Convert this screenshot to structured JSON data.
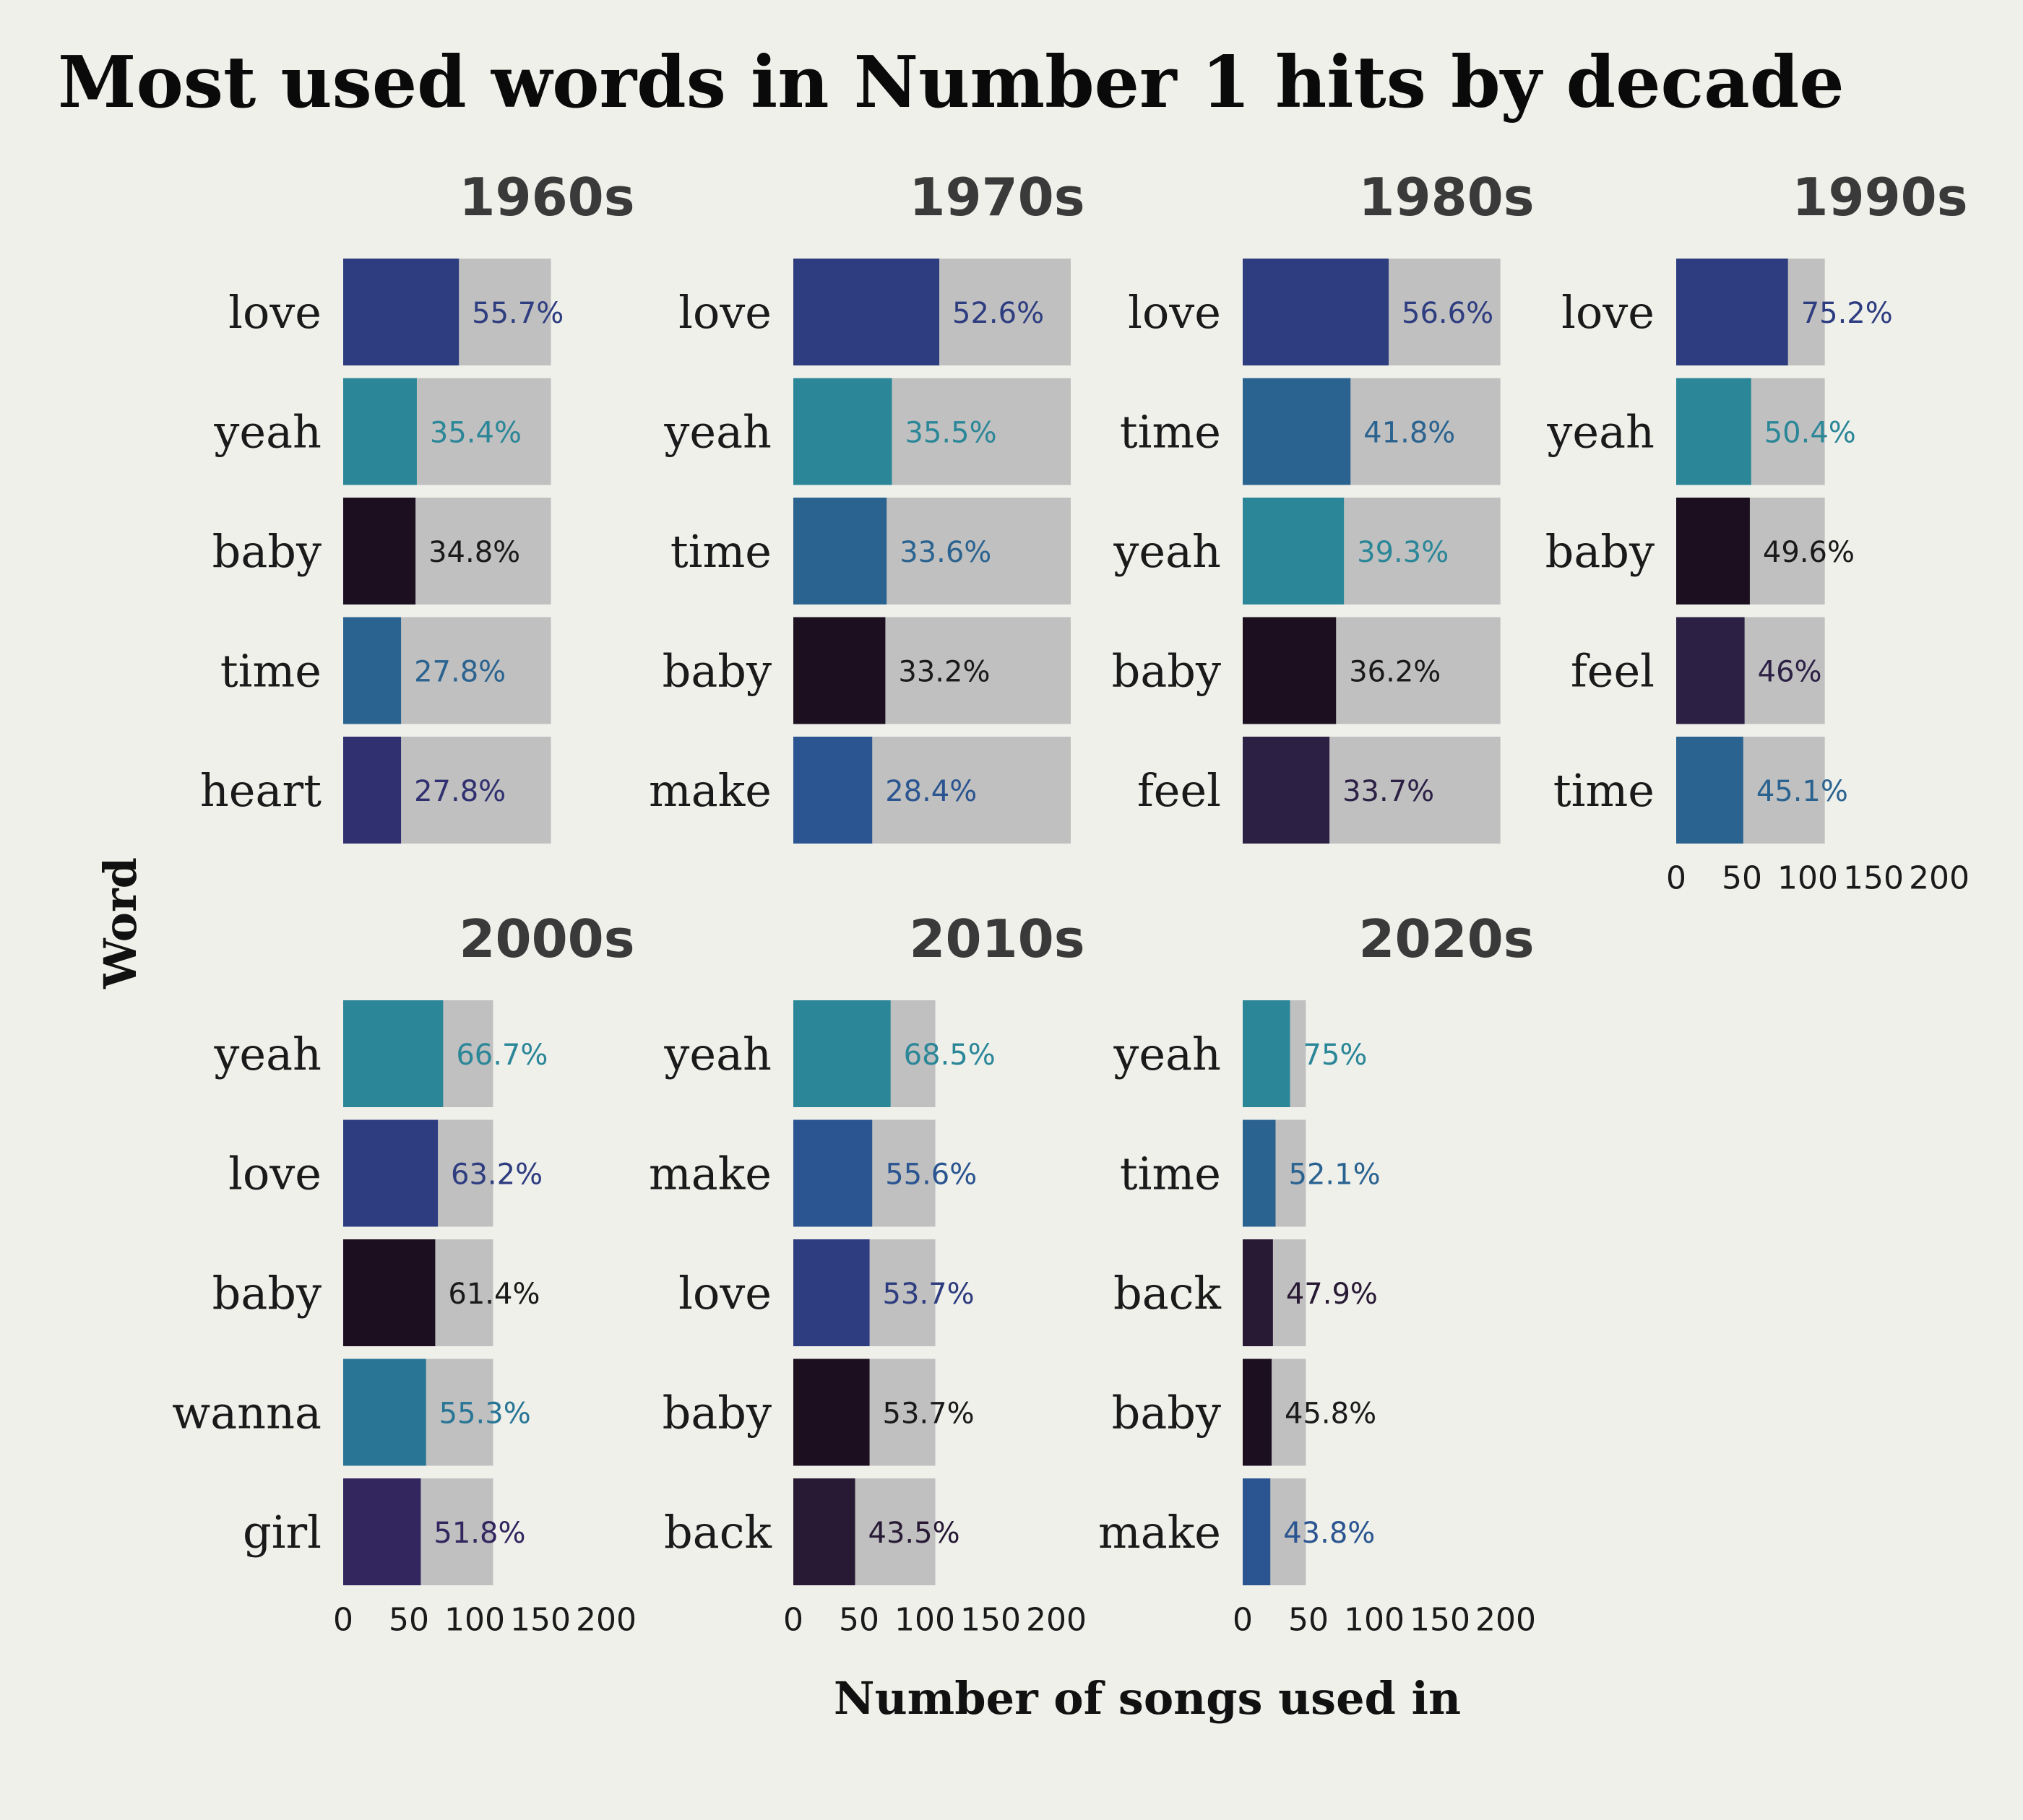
{
  "chart_data": {
    "type": "bar",
    "title": "Most used words in Number 1 hits by decade",
    "xlabel": "Number of songs used in",
    "ylabel": "Word",
    "xlim": [
      0,
      200
    ],
    "xticks": [
      "0",
      "50",
      "100",
      "150",
      "200"
    ],
    "colors": {
      "love": "#2e3d80",
      "yeah": "#2b8798",
      "baby": "#1c1020",
      "time": "#2b6390",
      "heart": "#303070",
      "make": "#2b5590",
      "feel": "#2c2045",
      "wanna": "#287595",
      "girl": "#33255e",
      "back": "#281a35",
      "total": "#c0c0c0"
    },
    "panels": [
      {
        "decade": "1960s",
        "total_songs": 158,
        "words": [
          "love",
          "yeah",
          "baby",
          "time",
          "heart"
        ],
        "values": [
          88,
          56,
          55,
          44,
          44
        ],
        "labels": [
          "55.7%",
          "35.4%",
          "34.8%",
          "27.8%",
          "27.8%"
        ]
      },
      {
        "decade": "1970s",
        "total_songs": 211,
        "words": [
          "love",
          "yeah",
          "time",
          "baby",
          "make"
        ],
        "values": [
          111,
          75,
          71,
          70,
          60
        ],
        "labels": [
          "52.6%",
          "35.5%",
          "33.6%",
          "33.2%",
          "28.4%"
        ]
      },
      {
        "decade": "1980s",
        "total_songs": 196,
        "words": [
          "love",
          "time",
          "yeah",
          "baby",
          "feel"
        ],
        "values": [
          111,
          82,
          77,
          71,
          66
        ],
        "labels": [
          "56.6%",
          "41.8%",
          "39.3%",
          "36.2%",
          "33.7%"
        ]
      },
      {
        "decade": "1990s",
        "total_songs": 113,
        "words": [
          "love",
          "yeah",
          "baby",
          "feel",
          "time"
        ],
        "values": [
          85,
          57,
          56,
          52,
          51
        ],
        "labels": [
          "75.2%",
          "50.4%",
          "49.6%",
          "46%",
          "45.1%"
        ]
      },
      {
        "decade": "2000s",
        "total_songs": 114,
        "words": [
          "yeah",
          "love",
          "baby",
          "wanna",
          "girl"
        ],
        "values": [
          76,
          72,
          70,
          63,
          59
        ],
        "labels": [
          "66.7%",
          "63.2%",
          "61.4%",
          "55.3%",
          "51.8%"
        ]
      },
      {
        "decade": "2010s",
        "total_songs": 108,
        "words": [
          "yeah",
          "make",
          "love",
          "baby",
          "back"
        ],
        "values": [
          74,
          60,
          58,
          58,
          47
        ],
        "labels": [
          "68.5%",
          "55.6%",
          "53.7%",
          "53.7%",
          "43.5%"
        ]
      },
      {
        "decade": "2020s",
        "total_songs": 48,
        "words": [
          "yeah",
          "time",
          "back",
          "baby",
          "make"
        ],
        "values": [
          36,
          25,
          23,
          22,
          21
        ],
        "labels": [
          "75%",
          "52.1%",
          "47.9%",
          "45.8%",
          "43.8%"
        ]
      }
    ]
  }
}
